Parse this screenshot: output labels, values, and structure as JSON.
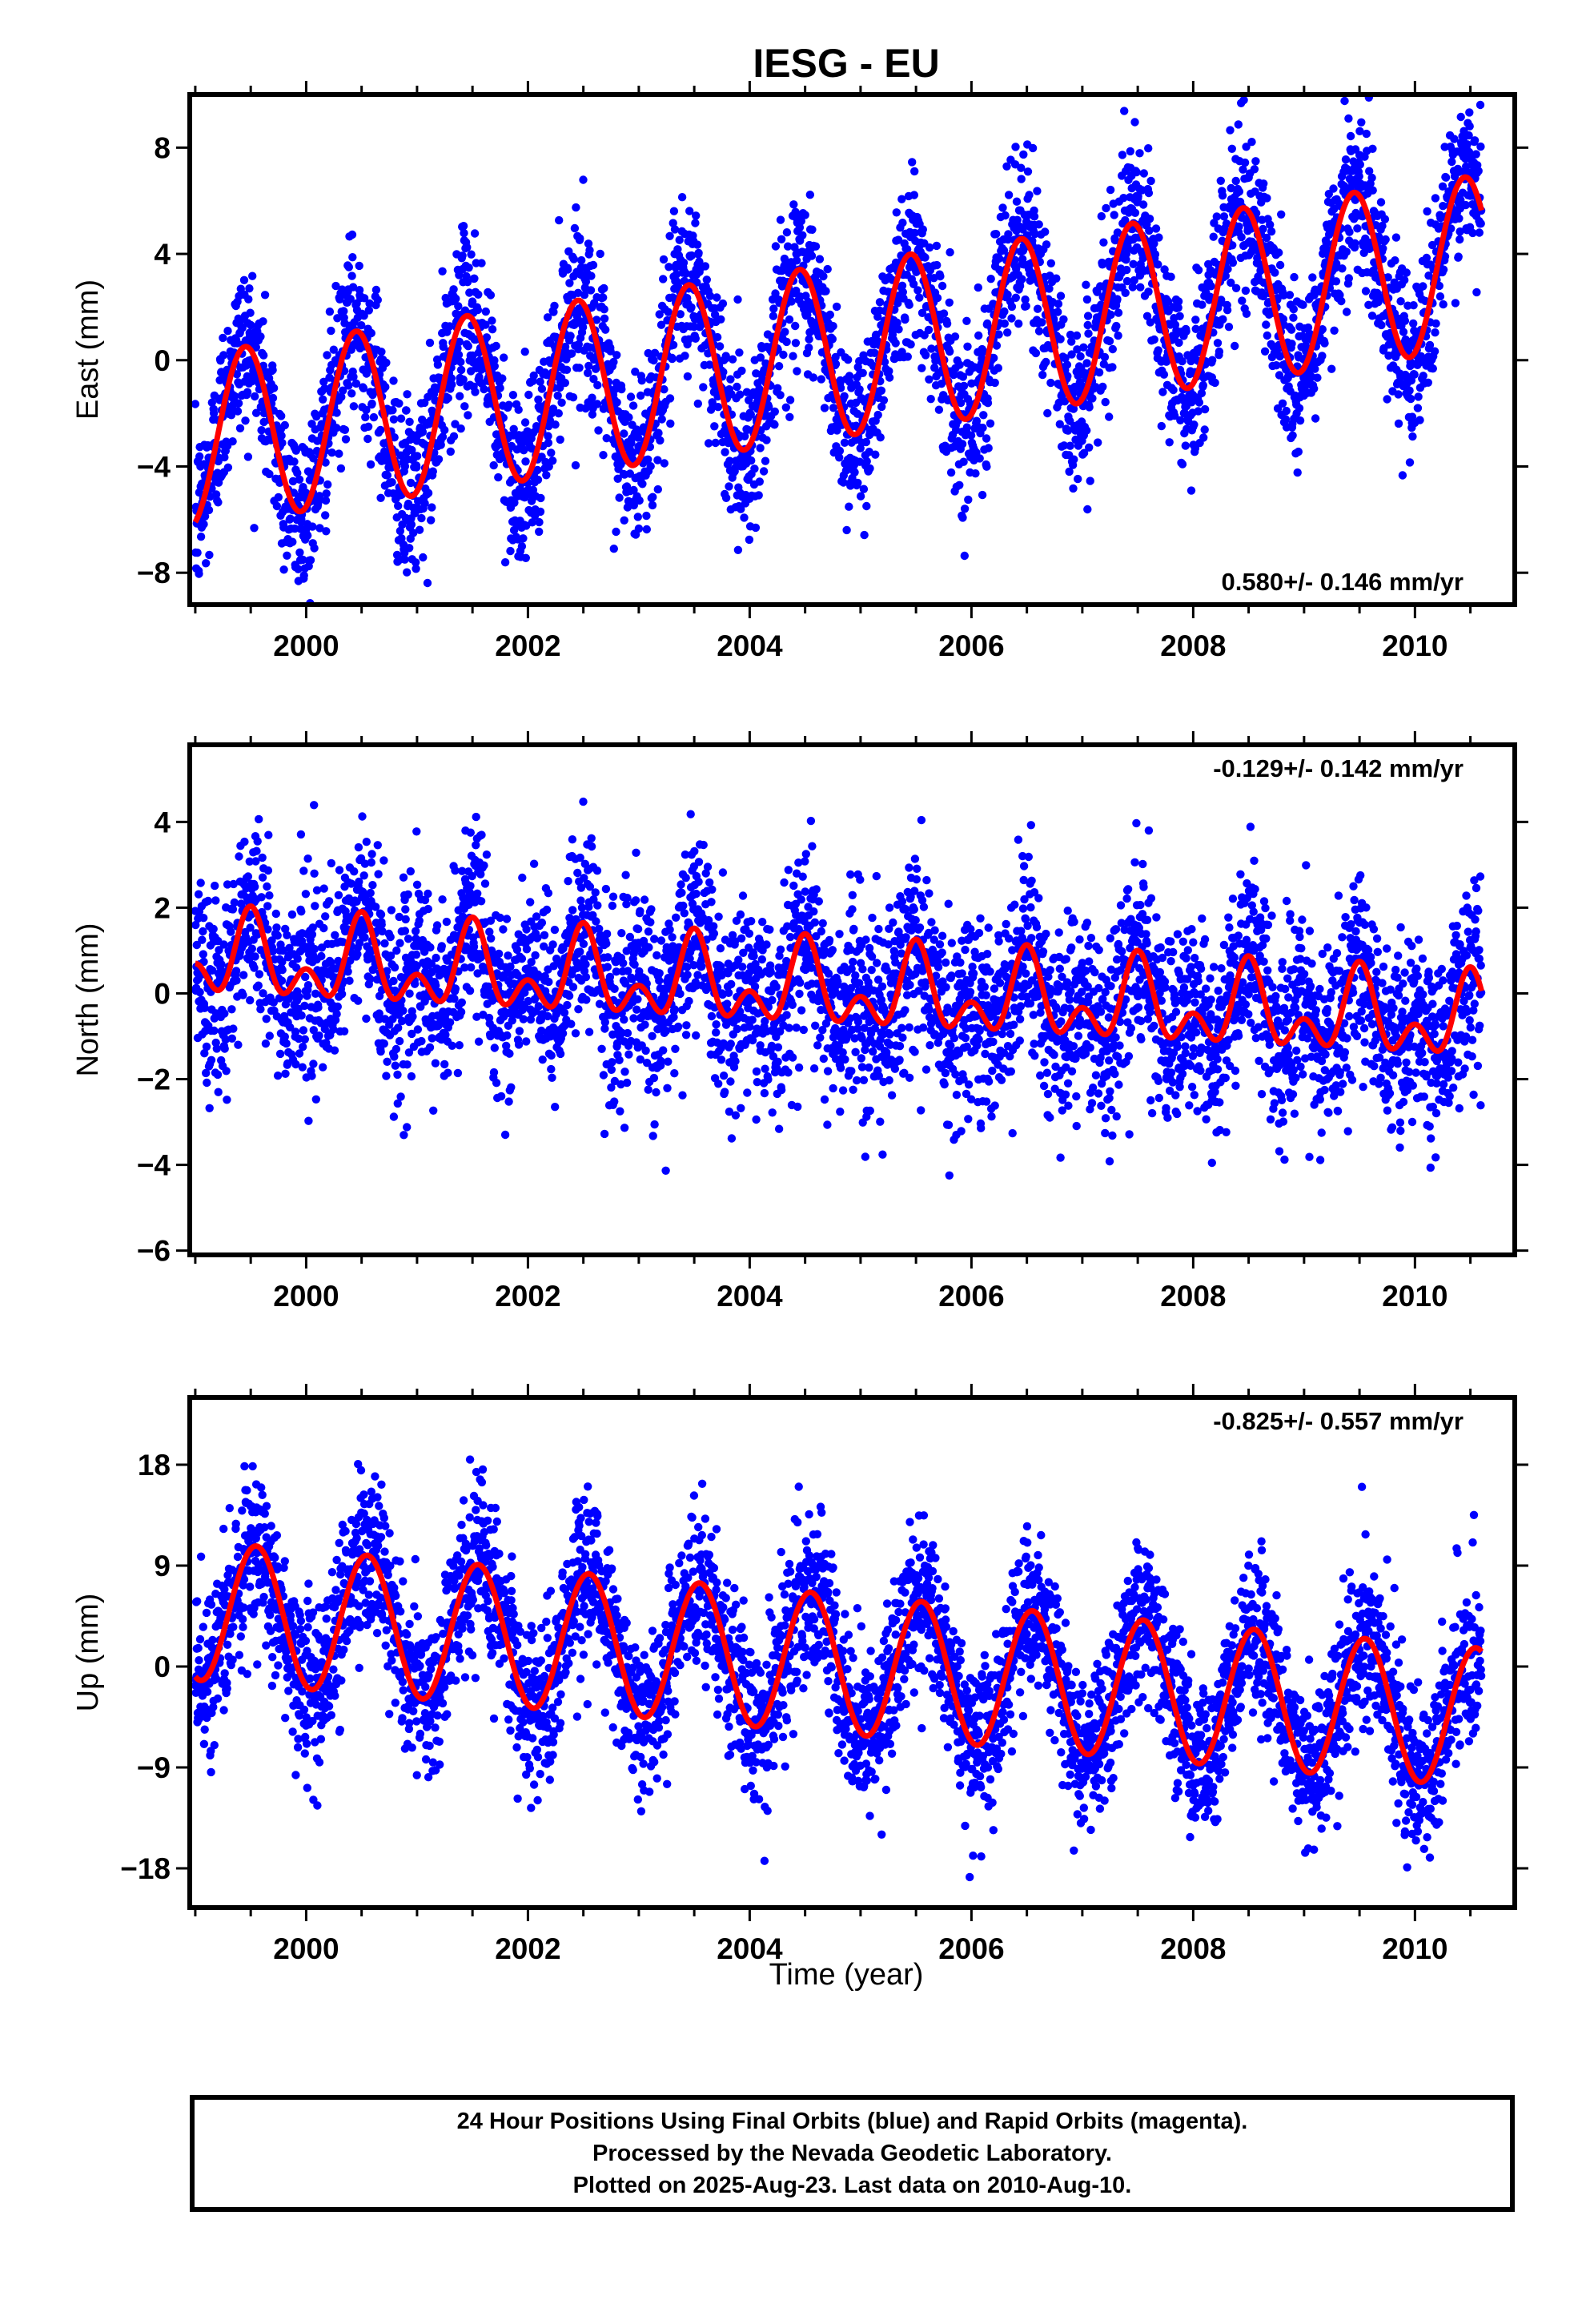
{
  "chart_data": {
    "type": "scatter",
    "title": "IESG - EU",
    "xlabel": "Time (year)",
    "x_ticks": [
      "2000",
      "2002",
      "2004",
      "2006",
      "2008",
      "2010"
    ],
    "xlim": [
      1998.95,
      2010.9
    ],
    "colors": {
      "points": "#0000ff",
      "model": "#ff0000",
      "frame": "#000000"
    },
    "panels": [
      {
        "name": "east",
        "ylabel": "East (mm)",
        "ylim": [
          -9.2,
          10
        ],
        "y_ticks": [
          8,
          4,
          0,
          -4,
          -8
        ],
        "rate_text": "0.580+/- 0.146 mm/yr",
        "rate_position": "bottom-right",
        "model": {
          "start_year": 1999.0,
          "end_year": 2010.6,
          "offset_at_start": -3.0,
          "slope_mm_per_yr": 0.58,
          "annual_amplitude": 3.25,
          "annual_peak_phase_yr": 0.45,
          "semiannual_amplitude": 0.0,
          "semiannual_peak_phase_yr": 0.0
        },
        "scatter_sigma": 1.6
      },
      {
        "name": "north",
        "ylabel": "North (mm)",
        "ylim": [
          -6.1,
          5.8
        ],
        "y_ticks": [
          4,
          2,
          0,
          -2,
          -4,
          -6
        ],
        "rate_text": "-0.129+/- 0.142 mm/yr",
        "rate_position": "top-right",
        "model": {
          "start_year": 1999.0,
          "end_year": 2010.6,
          "offset_at_start": 0.8,
          "slope_mm_per_yr": -0.129,
          "annual_amplitude": 0.7,
          "annual_peak_phase_yr": 0.5,
          "semiannual_amplitude": 0.6,
          "semiannual_peak_phase_yr": 0.0
        },
        "scatter_sigma": 1.1
      },
      {
        "name": "up",
        "ylabel": "Up (mm)",
        "ylim": [
          -21.5,
          24
        ],
        "y_ticks": [
          18,
          9,
          0,
          -9,
          -18
        ],
        "rate_text": "-0.825+/- 0.557 mm/yr",
        "rate_position": "top-right",
        "model": {
          "start_year": 1999.0,
          "end_year": 2010.6,
          "offset_at_start": 5.0,
          "slope_mm_per_yr": -0.825,
          "annual_amplitude": 6.2,
          "annual_peak_phase_yr": 0.55,
          "semiannual_amplitude": 0.0,
          "semiannual_peak_phase_yr": 0.0
        },
        "scatter_sigma": 3.6
      }
    ]
  },
  "footer": {
    "line1": "24 Hour Positions Using Final Orbits (blue) and Rapid Orbits (magenta).",
    "line2": "Processed by the Nevada Geodetic Laboratory.",
    "line3": "Plotted on 2025-Aug-23. Last data on 2010-Aug-10."
  }
}
